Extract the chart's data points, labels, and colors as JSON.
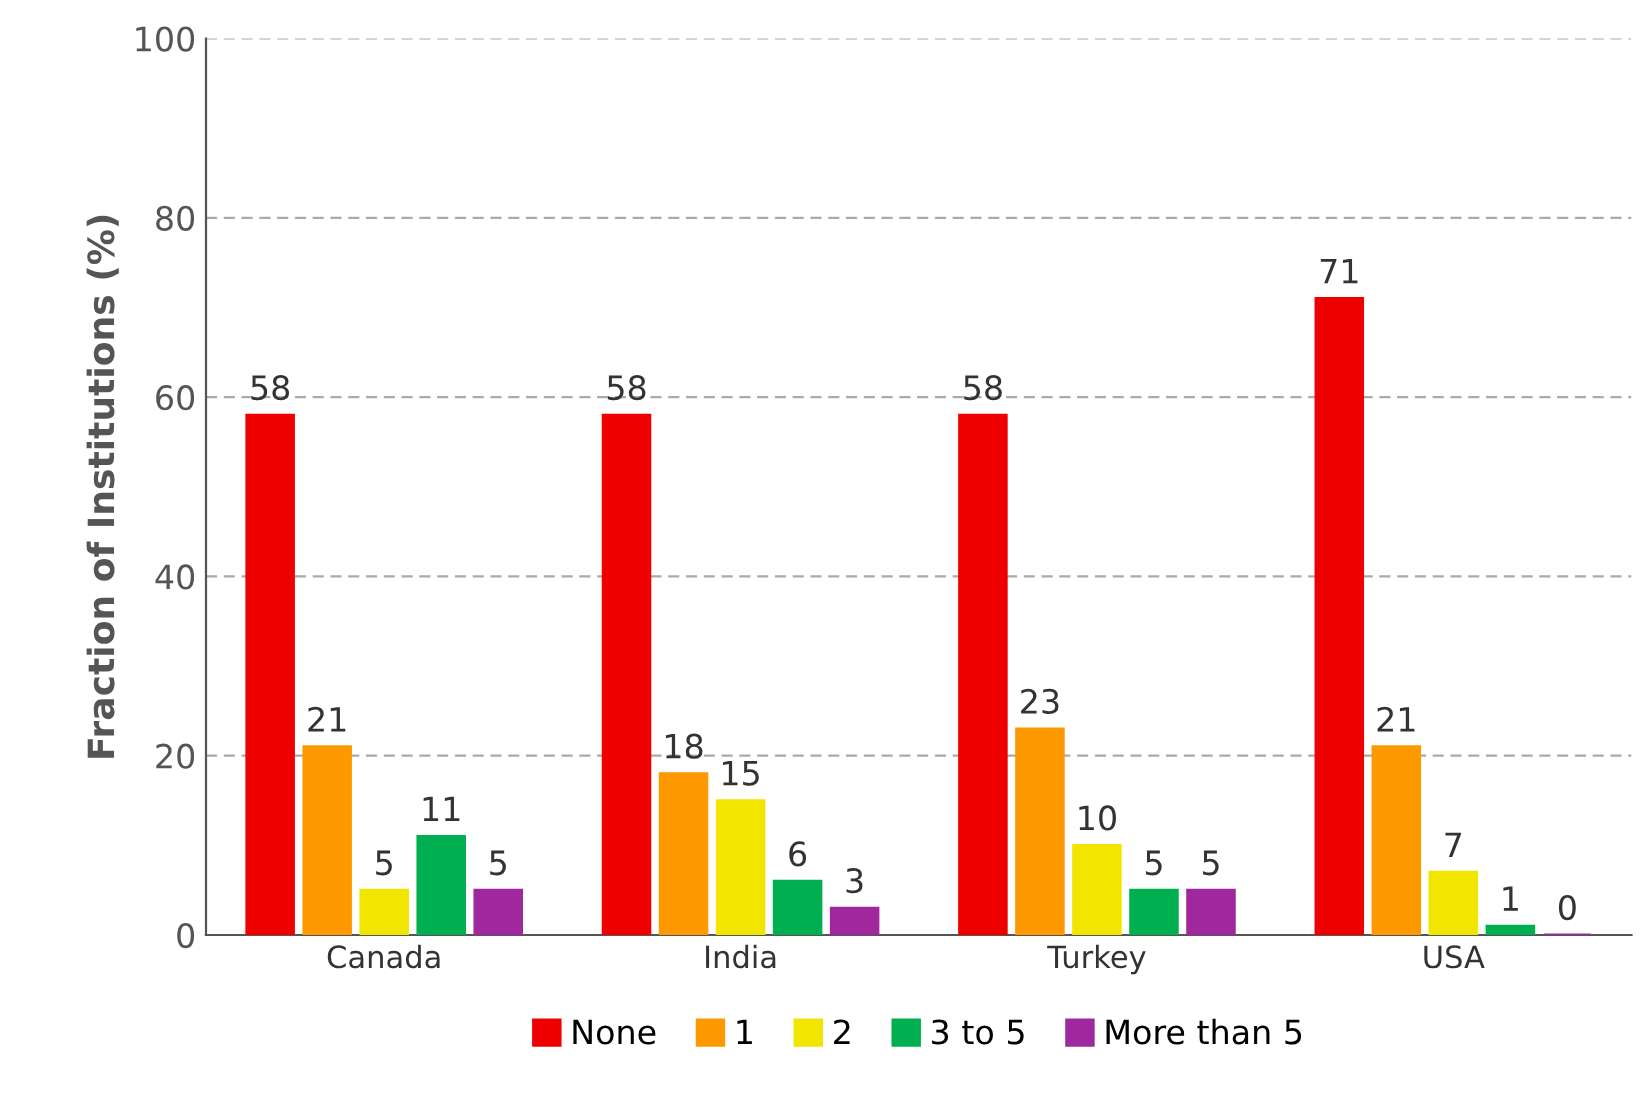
{
  "chart_data": {
    "type": "bar",
    "ylabel": "Fraction of Institutions (%)",
    "categories": [
      "Canada",
      "India",
      "Turkey",
      "USA"
    ],
    "series": [
      {
        "name": "None",
        "color": "#ee0000",
        "values": [
          58,
          58,
          58,
          71
        ]
      },
      {
        "name": "1",
        "color": "#ff9900",
        "values": [
          21,
          18,
          23,
          21
        ]
      },
      {
        "name": "2",
        "color": "#f2e600",
        "values": [
          5,
          15,
          10,
          7
        ]
      },
      {
        "name": "3 to 5",
        "color": "#00b050",
        "values": [
          11,
          6,
          5,
          1
        ]
      },
      {
        "name": "More than 5",
        "color": "#a0289f",
        "values": [
          5,
          3,
          5,
          0
        ]
      }
    ],
    "ylim": [
      0,
      100
    ],
    "yticks": [
      0,
      20,
      40,
      60,
      80,
      100
    ],
    "grid": "y",
    "legend": "bottom",
    "data_labels": true
  }
}
